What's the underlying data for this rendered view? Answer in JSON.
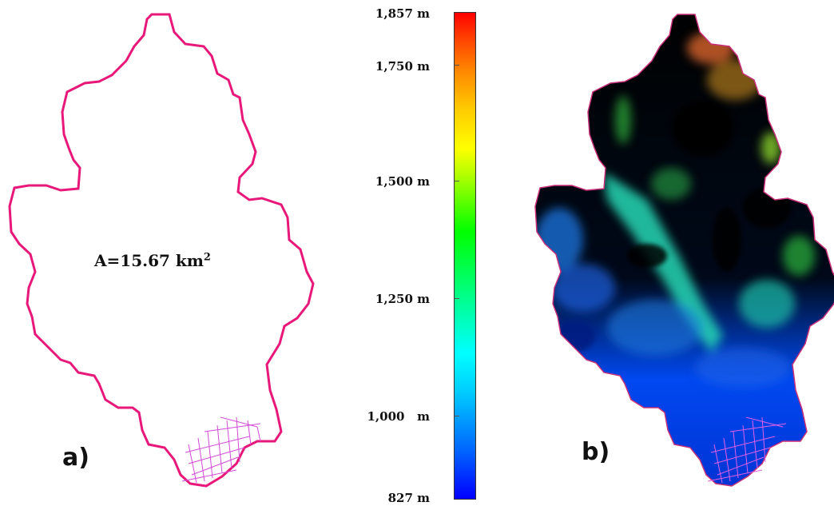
{
  "panel_a": {
    "area_label": "A=15.67 km",
    "area_unit_superscript": "2",
    "label": "a)",
    "outline_color": "#e8187a",
    "grid_color": "#d24ad6"
  },
  "panel_b": {
    "label": "b)"
  },
  "colorbar": {
    "max_label": "1,857 m",
    "ticks": [
      {
        "label": "1,750 m",
        "value": 1750
      },
      {
        "label": "1,500 m",
        "value": 1500
      },
      {
        "label": "1,250 m",
        "value": 1250
      },
      {
        "label": "1,000   m",
        "value": 1000
      }
    ],
    "min_label": "827 m",
    "min_value": 827,
    "max_value": 1857
  }
}
